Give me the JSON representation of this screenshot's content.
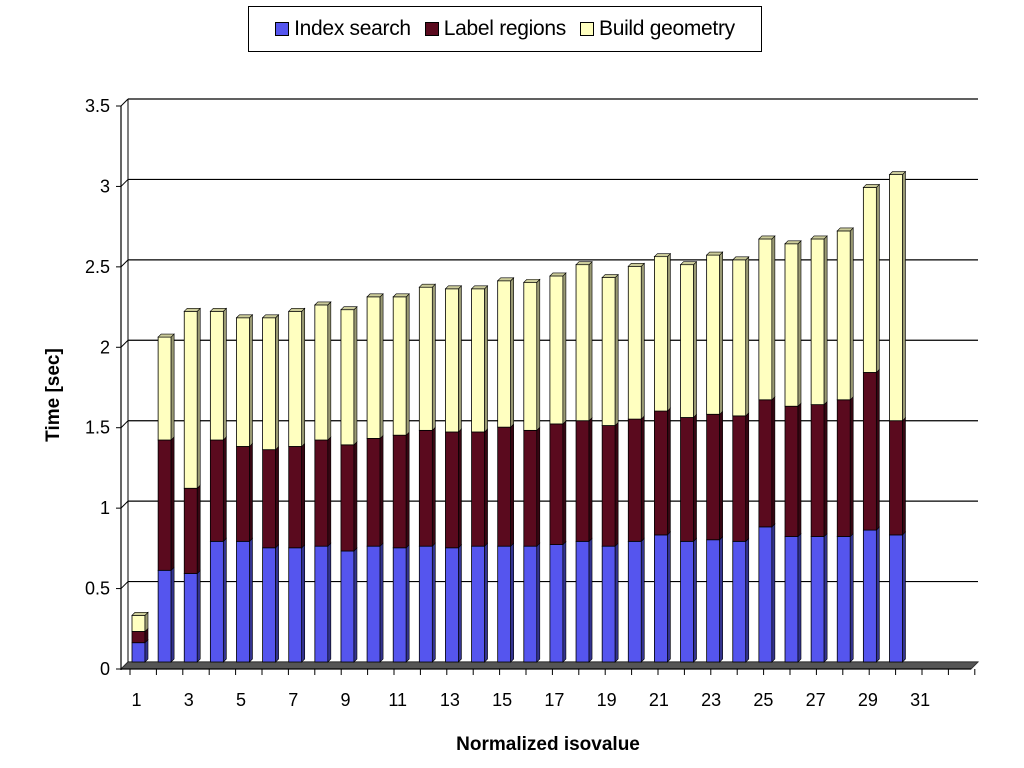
{
  "chart_data": {
    "type": "bar",
    "stacked": true,
    "three_d": true,
    "xlabel": "Normalized isovalue",
    "ylabel": "Time [sec]",
    "ylim": [
      0,
      3.5
    ],
    "yticks": [
      "0",
      "0.5",
      "1",
      "1.5",
      "2",
      "2.5",
      "3",
      "3.5"
    ],
    "xtick_labels": [
      "1",
      "3",
      "5",
      "7",
      "9",
      "11",
      "13",
      "15",
      "17",
      "19",
      "21",
      "23",
      "25",
      "27",
      "29",
      "31"
    ],
    "grid": "horizontal",
    "legend_position": "top",
    "categories": [
      1,
      2,
      3,
      4,
      5,
      6,
      7,
      8,
      9,
      10,
      11,
      12,
      13,
      14,
      15,
      16,
      17,
      18,
      19,
      20,
      21,
      22,
      23,
      24,
      25,
      26,
      27,
      28,
      29,
      30
    ],
    "series": [
      {
        "name": "Index search",
        "color": "#5555ee",
        "values": [
          0.12,
          0.57,
          0.55,
          0.75,
          0.75,
          0.71,
          0.71,
          0.72,
          0.69,
          0.72,
          0.71,
          0.72,
          0.71,
          0.72,
          0.72,
          0.72,
          0.73,
          0.75,
          0.72,
          0.75,
          0.79,
          0.75,
          0.76,
          0.75,
          0.84,
          0.78,
          0.78,
          0.78,
          0.82,
          0.79
        ]
      },
      {
        "name": "Label regions",
        "color": "#5a0a1e",
        "values": [
          0.07,
          0.81,
          0.53,
          0.63,
          0.59,
          0.61,
          0.63,
          0.66,
          0.66,
          0.67,
          0.7,
          0.72,
          0.72,
          0.71,
          0.74,
          0.72,
          0.75,
          0.75,
          0.75,
          0.76,
          0.77,
          0.77,
          0.78,
          0.78,
          0.79,
          0.81,
          0.82,
          0.85,
          0.98,
          0.71
        ]
      },
      {
        "name": "Build geometry",
        "color": "#ffffc0",
        "values": [
          0.1,
          0.64,
          1.1,
          0.8,
          0.8,
          0.82,
          0.84,
          0.84,
          0.84,
          0.88,
          0.86,
          0.89,
          0.89,
          0.89,
          0.91,
          0.92,
          0.92,
          0.97,
          0.92,
          0.95,
          0.96,
          0.95,
          0.99,
          0.97,
          1.0,
          1.01,
          1.03,
          1.05,
          1.15,
          1.53
        ]
      }
    ]
  }
}
